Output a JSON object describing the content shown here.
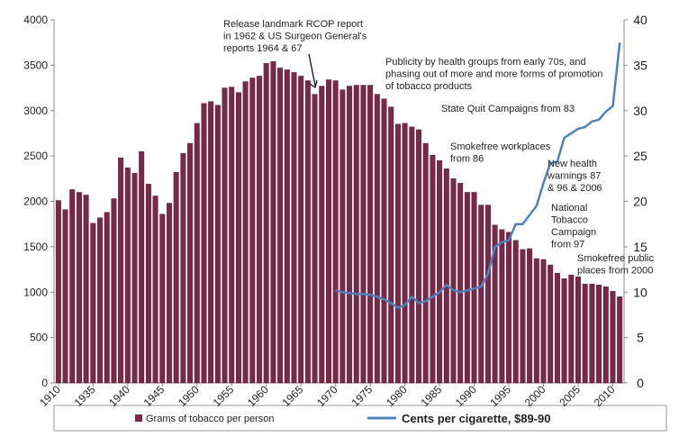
{
  "chart_data": {
    "type": "bar_line",
    "categories": [
      "1910",
      null,
      null,
      null,
      null,
      "1935",
      null,
      null,
      null,
      null,
      "1940",
      null,
      null,
      null,
      null,
      "1945",
      null,
      null,
      null,
      null,
      "1950",
      null,
      null,
      null,
      null,
      "1955",
      null,
      null,
      null,
      null,
      "1960",
      null,
      null,
      null,
      null,
      "1965",
      null,
      null,
      null,
      null,
      "1970",
      null,
      null,
      null,
      null,
      "1975",
      null,
      null,
      null,
      null,
      "1980",
      null,
      null,
      null,
      null,
      "1985",
      null,
      null,
      null,
      null,
      "1990",
      null,
      null,
      null,
      null,
      "1995",
      null,
      null,
      null,
      null,
      "2000",
      null,
      null,
      null,
      null,
      "2005",
      null,
      null,
      null,
      null,
      "2010",
      null
    ],
    "series": [
      {
        "name": "Grams of tobacco per person",
        "type": "bar",
        "color": "#7a2848",
        "values": [
          2010,
          1910,
          2130,
          2100,
          2070,
          1760,
          1820,
          1880,
          2030,
          2480,
          2370,
          2310,
          2550,
          2190,
          2060,
          1860,
          1980,
          2320,
          2530,
          2640,
          2860,
          3080,
          3100,
          3060,
          3250,
          3260,
          3200,
          3320,
          3360,
          3380,
          3520,
          3540,
          3470,
          3450,
          3420,
          3380,
          3330,
          3180,
          3270,
          3340,
          3330,
          3230,
          3270,
          3280,
          3280,
          3280,
          3180,
          3130,
          3040,
          2850,
          2860,
          2820,
          2790,
          2640,
          2510,
          2450,
          2360,
          2250,
          2200,
          2100,
          2100,
          1960,
          1960,
          1740,
          1690,
          1660,
          1570,
          1470,
          1480,
          1370,
          1360,
          1300,
          1210,
          1150,
          1190,
          1170,
          1090,
          1090,
          1080,
          1060,
          1010,
          950
        ]
      },
      {
        "name": "Cents per cigarette, $89-90",
        "type": "line",
        "axis": "y2",
        "color": "#4f81bd",
        "values": [
          null,
          null,
          null,
          null,
          null,
          null,
          null,
          null,
          null,
          null,
          null,
          null,
          null,
          null,
          null,
          null,
          null,
          null,
          null,
          null,
          null,
          null,
          null,
          null,
          null,
          null,
          null,
          null,
          null,
          null,
          null,
          null,
          null,
          null,
          null,
          null,
          null,
          null,
          null,
          null,
          10.2,
          10,
          9.9,
          9.8,
          9.8,
          9.7,
          9.5,
          9.2,
          8.8,
          8.3,
          8.6,
          9.5,
          8.8,
          9,
          9.5,
          10,
          10.8,
          10.2,
          10,
          10.2,
          10.4,
          10.6,
          12,
          15,
          15.5,
          15.7,
          17.5,
          17.5,
          18.5,
          19.5,
          22,
          24.2,
          24.4,
          27,
          27.5,
          28,
          28.2,
          28.8,
          29,
          29.9,
          30.5,
          37.5
        ]
      }
    ],
    "ylim": [
      0,
      4000
    ],
    "yticks": [
      0,
      500,
      1000,
      1500,
      2000,
      2500,
      3000,
      3500,
      4000
    ],
    "y2lim": [
      0,
      40
    ],
    "y2ticks": [
      0,
      5,
      10,
      15,
      20,
      25,
      30,
      35,
      40
    ],
    "annotations": [
      [
        "Release landmark RCOP report",
        "in 1962 & US Surgeon General's",
        "reports 1964 & 67"
      ],
      [
        "Publicity by health groups from early 70s, and",
        "phasing out of more and more forms of promotion",
        "of tobacco products"
      ],
      [
        "State Quit Campaigns from 83"
      ],
      [
        "Smokefree workplaces",
        "from 86"
      ],
      [
        "New health",
        "warnings 87",
        "& 96 & 2006"
      ],
      [
        "National",
        "Tobacco",
        "Campaign",
        "from 97"
      ],
      [
        "Smokefree public",
        "places from 2000"
      ]
    ],
    "legend": "bottom"
  }
}
